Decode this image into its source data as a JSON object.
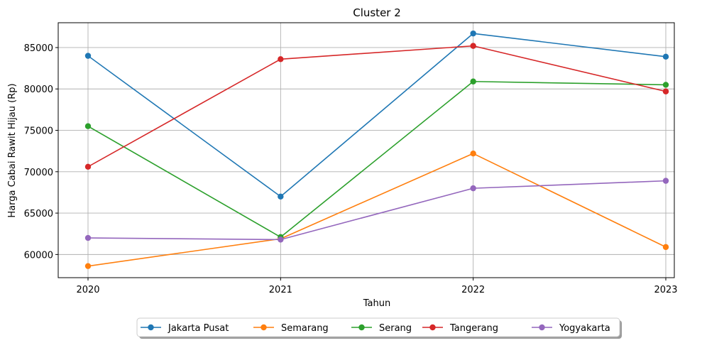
{
  "chart_data": {
    "type": "line",
    "title": "Cluster 2",
    "xlabel": "Tahun",
    "ylabel": "Harga Cabai Rawit Hijau (Rp)",
    "categories": [
      "2020",
      "2021",
      "2022",
      "2023"
    ],
    "ylim": [
      57200,
      88000
    ],
    "yticks": [
      60000,
      65000,
      70000,
      75000,
      80000,
      85000
    ],
    "grid": true,
    "legend_position": "bottom-center",
    "series": [
      {
        "name": "Jakarta Pusat",
        "color": "#1f77b4",
        "values": [
          84000,
          67000,
          86700,
          83900
        ]
      },
      {
        "name": "Semarang",
        "color": "#ff7f0e",
        "values": [
          58600,
          61900,
          72200,
          60900
        ]
      },
      {
        "name": "Serang",
        "color": "#2ca02c",
        "values": [
          75500,
          62100,
          80900,
          80500
        ]
      },
      {
        "name": "Tangerang",
        "color": "#d62728",
        "values": [
          70600,
          83600,
          85200,
          79700
        ]
      },
      {
        "name": "Yogyakarta",
        "color": "#9467bd",
        "values": [
          62000,
          61800,
          68000,
          68900
        ]
      }
    ]
  }
}
